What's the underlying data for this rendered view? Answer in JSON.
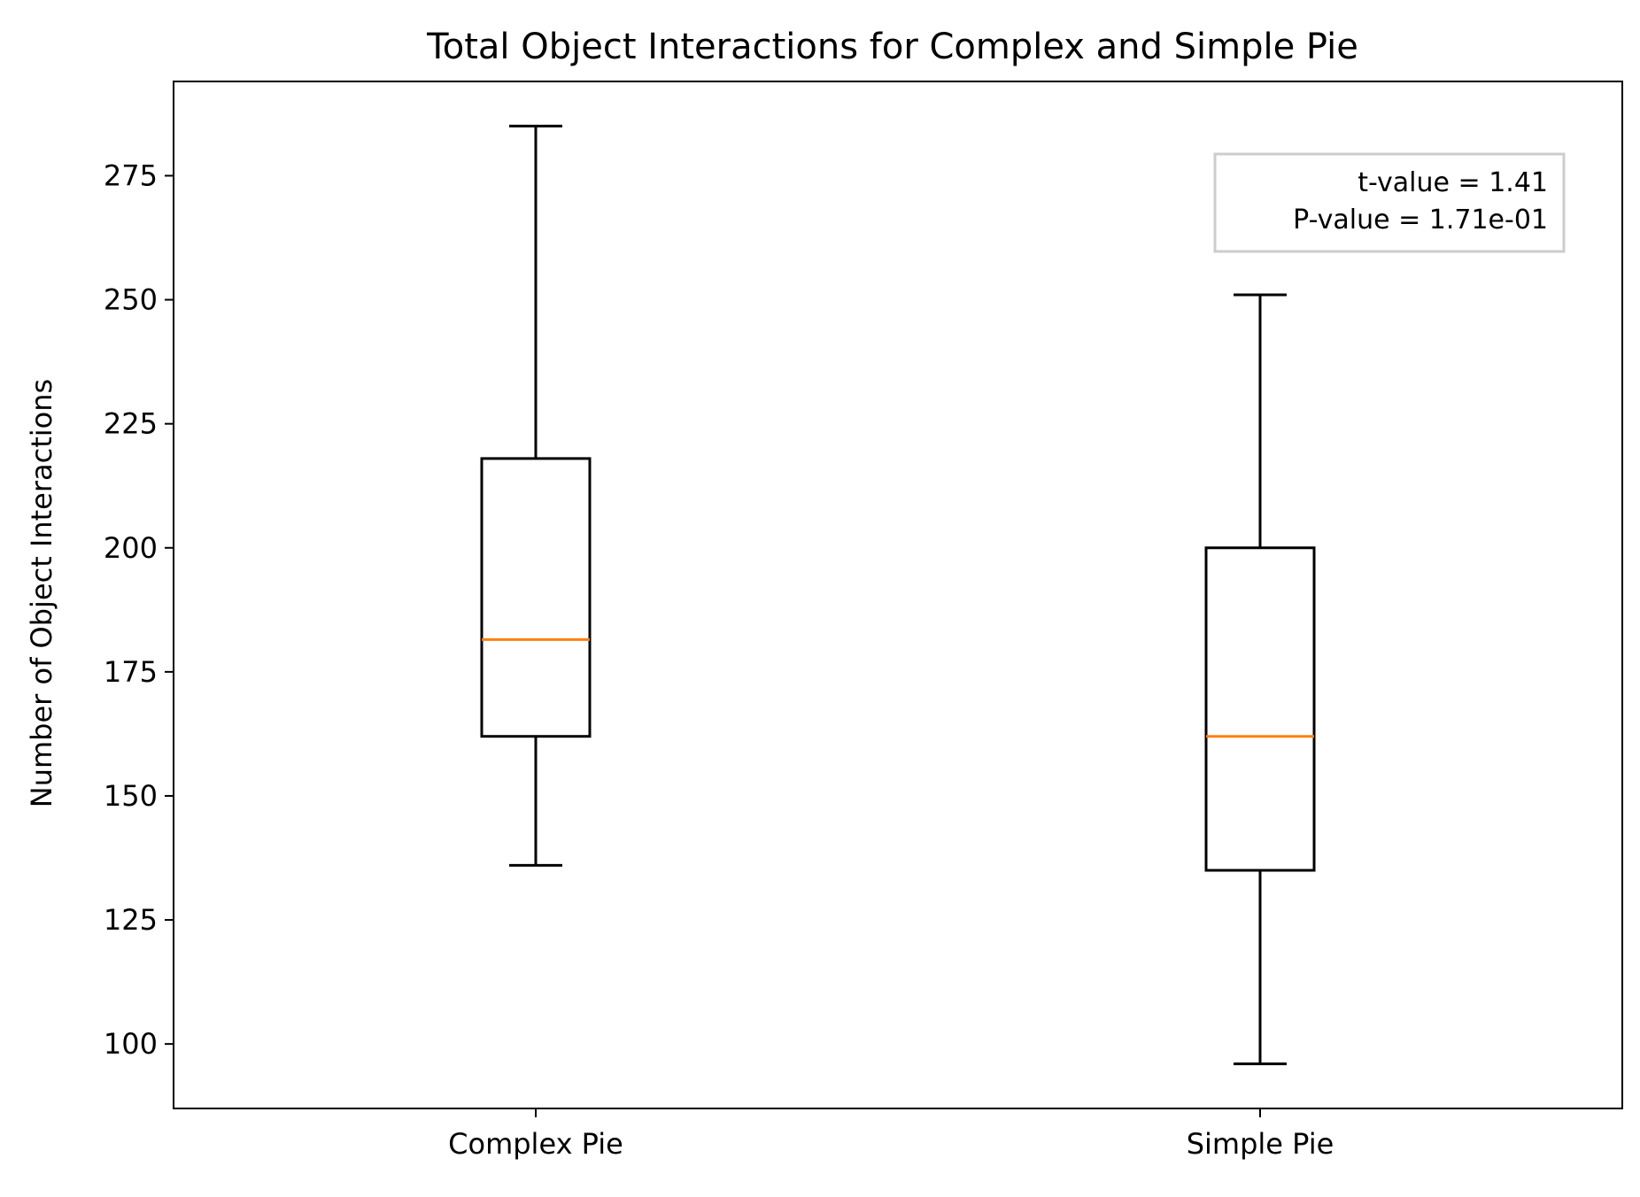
{
  "chart_data": {
    "type": "box",
    "title": "Total Object Interactions for Complex and Simple Pie",
    "xlabel": "",
    "ylabel": "Number of Object Interactions",
    "categories": [
      "Complex Pie",
      "Simple Pie"
    ],
    "ylim": [
      87,
      294
    ],
    "yticks": [
      100,
      125,
      150,
      175,
      200,
      225,
      250,
      275
    ],
    "grid": false,
    "boxes": [
      {
        "category": "Complex Pie",
        "whisker_low": 136,
        "q1": 162,
        "median": 181.5,
        "q3": 218,
        "whisker_high": 285
      },
      {
        "category": "Simple Pie",
        "whisker_low": 96,
        "q1": 135,
        "median": 162,
        "q3": 200,
        "whisker_high": 251
      }
    ],
    "annotation": {
      "lines": [
        "t-value = 1.41",
        "P-value = 1.71e-01"
      ],
      "placement": "top-right"
    },
    "colors": {
      "box": "#000000",
      "median": "#ff7f0e",
      "annotation_border": "#cccccc"
    }
  }
}
